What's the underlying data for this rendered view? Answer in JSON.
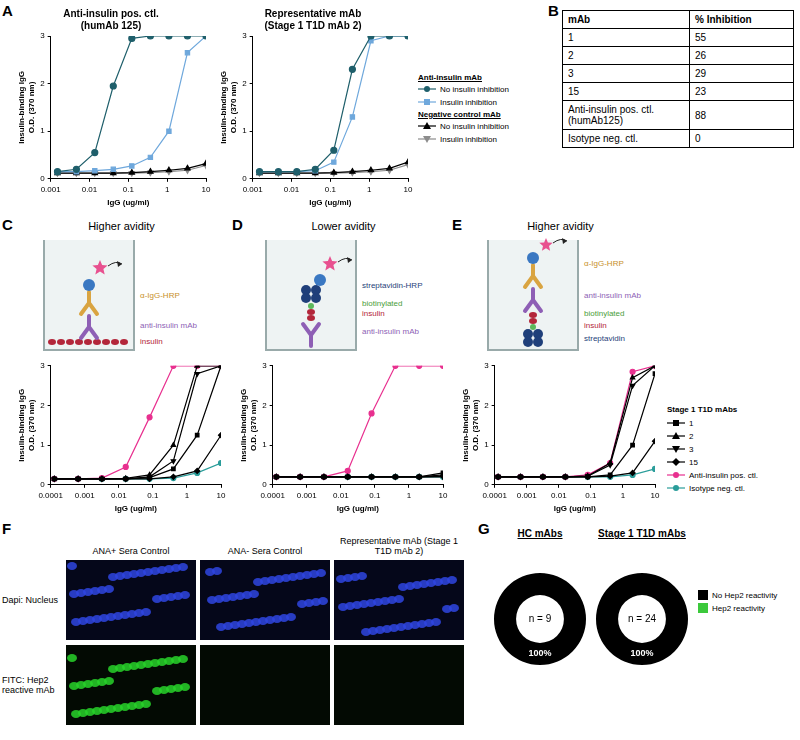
{
  "chart_data": [
    {
      "type": "line",
      "panel": "A",
      "title": "Anti-insulin pos. ctl. (humAb 125)",
      "x_label": "IgG (ug/ml)",
      "y_label": "Insulin-binding IgG O.D. (370 nm)",
      "log": "x",
      "grid": false,
      "x": [
        0.0015,
        0.0046,
        0.0137,
        0.041,
        0.123,
        0.37,
        1.11,
        3.33,
        10
      ],
      "xlim": [
        0.001,
        10
      ],
      "xticks": [
        0.001,
        0.01,
        0.1,
        1,
        10
      ],
      "ylim": [
        0,
        3
      ],
      "yticks": [
        0,
        1,
        2,
        3
      ],
      "series": [
        {
          "name": "No insulin inhibition",
          "group": "Anti-insulin mAb",
          "color": "#1f5f6b",
          "marker": "circle",
          "values": [
            0.15,
            0.2,
            0.55,
            1.95,
            2.95,
            3,
            3,
            3,
            3
          ]
        },
        {
          "name": "Insulin inhibition",
          "group": "Anti-insulin mAb",
          "color": "#6fa8dc",
          "marker": "square",
          "values": [
            0.15,
            0.15,
            0.17,
            0.2,
            0.27,
            0.45,
            1.0,
            2.65,
            3
          ]
        },
        {
          "name": "No insulin inhibition",
          "group": "Negative control mAb",
          "color": "#000000",
          "marker": "triangle",
          "values": [
            0.12,
            0.12,
            0.12,
            0.12,
            0.13,
            0.15,
            0.18,
            0.22,
            0.32
          ]
        },
        {
          "name": "Insulin inhibition",
          "group": "Negative control mAb",
          "color": "#8c8c8c",
          "marker": "triangle_down",
          "values": [
            0.12,
            0.12,
            0.12,
            0.12,
            0.12,
            0.13,
            0.15,
            0.18,
            0.28
          ]
        }
      ]
    },
    {
      "type": "line",
      "title": "Representative mAb (Stage 1 T1D mAb 2)",
      "x_label": "IgG (ug/ml)",
      "y_label": "Insulin-binding IgG O.D. (370 nm)",
      "log": "x",
      "grid": false,
      "legend": "right",
      "x": [
        0.0015,
        0.0046,
        0.0137,
        0.041,
        0.123,
        0.37,
        1.11,
        3.33,
        10
      ],
      "xlim": [
        0.001,
        10
      ],
      "xticks": [
        0.001,
        0.01,
        0.1,
        1,
        10
      ],
      "ylim": [
        0,
        3
      ],
      "yticks": [
        0,
        1,
        2,
        3
      ],
      "series": [
        {
          "name": "No insulin inhibition",
          "group": "Anti-insulin mAb",
          "color": "#1f5f6b",
          "marker": "circle",
          "values": [
            0.15,
            0.15,
            0.15,
            0.2,
            0.6,
            2.3,
            3,
            3,
            3
          ]
        },
        {
          "name": "Insulin inhibition",
          "group": "Anti-insulin mAb",
          "color": "#6fa8dc",
          "marker": "square",
          "values": [
            0.15,
            0.15,
            0.15,
            0.17,
            0.35,
            1.3,
            2.9,
            3,
            3
          ]
        },
        {
          "name": "No insulin inhibition",
          "group": "Negative control mAb",
          "color": "#000000",
          "marker": "triangle",
          "values": [
            0.12,
            0.12,
            0.12,
            0.12,
            0.13,
            0.15,
            0.18,
            0.22,
            0.35
          ]
        },
        {
          "name": "Insulin inhibition",
          "group": "Negative control mAb",
          "color": "#8c8c8c",
          "marker": "triangle_down",
          "values": [
            0.12,
            0.12,
            0.12,
            0.12,
            0.12,
            0.13,
            0.15,
            0.18,
            0.3
          ]
        }
      ]
    },
    {
      "type": "line",
      "panel": "C",
      "title": "Higher avidity",
      "diagram_labels": [
        {
          "text": "α-IgG-HRP",
          "color": "#c8902a"
        },
        {
          "text": "anti-insulin mAb",
          "color": "#8e5fb5"
        },
        {
          "text": "insulin",
          "color": "#b3263a"
        }
      ],
      "x_label": "IgG (ug/ml)",
      "y_label": "Insulin-binding IgG O.D. (370 nm)",
      "log": "x",
      "grid": false,
      "x": [
        0.000128,
        0.00064,
        0.0032,
        0.016,
        0.08,
        0.4,
        2,
        10
      ],
      "xlim": [
        0.0001,
        10
      ],
      "xticks": [
        0.0001,
        0.001,
        0.01,
        0.1,
        1,
        10
      ],
      "ylim": [
        0,
        3
      ],
      "yticks": [
        0,
        1,
        2,
        3
      ],
      "series": [
        {
          "name": "1",
          "color": "#000000",
          "marker": "square",
          "values": [
            0.15,
            0.15,
            0.15,
            0.15,
            0.18,
            0.4,
            1.25,
            3
          ]
        },
        {
          "name": "2",
          "color": "#000000",
          "marker": "triangle",
          "values": [
            0.15,
            0.15,
            0.15,
            0.16,
            0.25,
            1.0,
            3,
            3
          ]
        },
        {
          "name": "3",
          "color": "#000000",
          "marker": "triangle_down",
          "values": [
            0.15,
            0.15,
            0.15,
            0.15,
            0.2,
            0.6,
            2.8,
            3
          ]
        },
        {
          "name": "15",
          "color": "#000000",
          "marker": "diamond",
          "values": [
            0.15,
            0.15,
            0.15,
            0.15,
            0.15,
            0.2,
            0.35,
            1.25
          ]
        },
        {
          "name": "Anti-insulin pos. ctl.",
          "color": "#e8308f",
          "marker": "circle",
          "values": [
            0.15,
            0.15,
            0.17,
            0.45,
            1.7,
            3,
            3,
            3
          ]
        },
        {
          "name": "Isotype neg. ctl.",
          "color": "#2a9d9a",
          "marker": "circle",
          "values": [
            0.15,
            0.15,
            0.15,
            0.15,
            0.15,
            0.17,
            0.3,
            0.55
          ]
        }
      ]
    },
    {
      "type": "line",
      "panel": "D",
      "title": "Lower avidity",
      "diagram_labels": [
        {
          "text": "streptavidin-HRP",
          "color": "#1f3f7a"
        },
        {
          "text": "biotinylated",
          "color": "#4a9e3a"
        },
        {
          "text": "insulin",
          "color": "#b3263a"
        },
        {
          "text": "anti-insulin mAb",
          "color": "#8e5fb5"
        }
      ],
      "x_label": "IgG (ug/ml)",
      "y_label": "Insulin-binding IgG O.D. (370 nm)",
      "log": "x",
      "grid": false,
      "x": [
        0.000128,
        0.00064,
        0.0032,
        0.016,
        0.08,
        0.4,
        2,
        10
      ],
      "xlim": [
        0.0001,
        10
      ],
      "xticks": [
        0.0001,
        0.001,
        0.01,
        0.1,
        1,
        10
      ],
      "ylim": [
        0,
        3
      ],
      "yticks": [
        0,
        1,
        2,
        3
      ],
      "series": [
        {
          "name": "1",
          "color": "#000000",
          "marker": "square",
          "values": [
            0.2,
            0.2,
            0.2,
            0.2,
            0.2,
            0.2,
            0.2,
            0.3
          ]
        },
        {
          "name": "2",
          "color": "#000000",
          "marker": "triangle",
          "values": [
            0.2,
            0.2,
            0.2,
            0.2,
            0.2,
            0.2,
            0.2,
            0.25
          ]
        },
        {
          "name": "3",
          "color": "#000000",
          "marker": "triangle_down",
          "values": [
            0.2,
            0.2,
            0.2,
            0.2,
            0.2,
            0.2,
            0.2,
            0.2
          ]
        },
        {
          "name": "15",
          "color": "#000000",
          "marker": "diamond",
          "values": [
            0.2,
            0.2,
            0.2,
            0.2,
            0.2,
            0.2,
            0.2,
            0.22
          ]
        },
        {
          "name": "Anti-insulin pos. ctl.",
          "color": "#e8308f",
          "marker": "circle",
          "values": [
            0.2,
            0.2,
            0.2,
            0.35,
            1.8,
            3,
            3,
            3
          ]
        },
        {
          "name": "Isotype neg. ctl.",
          "color": "#2a9d9a",
          "marker": "circle",
          "values": [
            0.2,
            0.2,
            0.2,
            0.2,
            0.2,
            0.2,
            0.2,
            0.2
          ]
        }
      ]
    },
    {
      "type": "line",
      "panel": "E",
      "title": "Higher avidity",
      "diagram_labels": [
        {
          "text": "α-IgG-HRP",
          "color": "#c8902a"
        },
        {
          "text": "anti-insulin mAb",
          "color": "#8e5fb5"
        },
        {
          "text": "biotinylated",
          "color": "#4a9e3a"
        },
        {
          "text": "insulin",
          "color": "#b3263a"
        },
        {
          "text": "streptavidin",
          "color": "#1f3f7a"
        }
      ],
      "x_label": "IgG (ug/ml)",
      "y_label": "Insulin-binding IgG O.D. (370 nm)",
      "log": "x",
      "grid": false,
      "legend": "right",
      "legend_title": "Stage 1 T1D mAbs",
      "x": [
        0.000128,
        0.00064,
        0.0032,
        0.016,
        0.08,
        0.4,
        2,
        10
      ],
      "xlim": [
        0.0001,
        10
      ],
      "xticks": [
        0.0001,
        0.001,
        0.01,
        0.1,
        1,
        10
      ],
      "ylim": [
        0,
        3
      ],
      "yticks": [
        0,
        1,
        2,
        3
      ],
      "series": [
        {
          "name": "1",
          "color": "#000000",
          "marker": "square",
          "values": [
            0.2,
            0.2,
            0.2,
            0.2,
            0.2,
            0.25,
            1.0,
            2.8
          ]
        },
        {
          "name": "2",
          "color": "#000000",
          "marker": "triangle",
          "values": [
            0.2,
            0.2,
            0.2,
            0.2,
            0.22,
            0.55,
            2.7,
            3
          ]
        },
        {
          "name": "3",
          "color": "#000000",
          "marker": "triangle_down",
          "values": [
            0.2,
            0.2,
            0.2,
            0.2,
            0.22,
            0.5,
            2.5,
            3
          ]
        },
        {
          "name": "15",
          "color": "#000000",
          "marker": "diamond",
          "values": [
            0.2,
            0.2,
            0.2,
            0.2,
            0.2,
            0.22,
            0.3,
            1.1
          ]
        },
        {
          "name": "Anti-insulin pos. ctl.",
          "color": "#e8308f",
          "marker": "circle",
          "values": [
            0.2,
            0.2,
            0.2,
            0.2,
            0.25,
            0.55,
            2.85,
            3
          ]
        },
        {
          "name": "Isotype neg. ctl.",
          "color": "#2a9d9a",
          "marker": "circle",
          "values": [
            0.2,
            0.2,
            0.2,
            0.2,
            0.2,
            0.2,
            0.25,
            0.4
          ]
        }
      ]
    },
    {
      "type": "doughnut",
      "panel": "G",
      "title": "HC mAbs",
      "annotation": "n = 9",
      "categories": [
        "No Hep2 reactivity",
        "Hep2 reactivity"
      ],
      "values": [
        100,
        0
      ],
      "value_labels": [
        "100%",
        null
      ],
      "data_labels": true,
      "colors": [
        "#000000",
        "#3cc93c"
      ]
    },
    {
      "type": "doughnut",
      "title": "Stage 1 T1D mAbs",
      "annotation": "n = 24",
      "categories": [
        "No Hep2 reactivity",
        "Hep2 reactivity"
      ],
      "values": [
        100,
        0
      ],
      "value_labels": [
        "100%",
        null
      ],
      "data_labels": true,
      "colors": [
        "#000000",
        "#3cc93c"
      ],
      "legend": "right"
    }
  ],
  "table": {
    "panel": "B",
    "columns": [
      "mAb",
      "% Inhibition"
    ],
    "rows": [
      [
        "1",
        55
      ],
      [
        "2",
        26
      ],
      [
        "3",
        29
      ],
      [
        "15",
        23
      ],
      [
        "Anti-insulin pos. ctl. (humAb125)",
        88
      ],
      [
        "Isotype neg. ctl.",
        0
      ]
    ]
  },
  "images": {
    "panel": "F",
    "columns": [
      "ANA+ Sera Control",
      "ANA- Sera Control",
      "Representative mAb (Stage 1 T1D mAb 2)"
    ],
    "rows": [
      "Dapi: Nucleus",
      "FITC: Hep2 reactive mAb"
    ],
    "colors": [
      "#2f45e0",
      "#28d22a"
    ],
    "stained": [
      [
        true,
        true,
        true
      ],
      [
        true,
        false,
        false
      ]
    ]
  }
}
